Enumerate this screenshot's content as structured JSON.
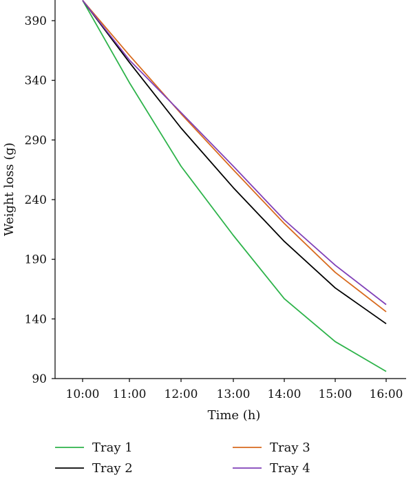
{
  "chart_data": {
    "type": "line",
    "title": "",
    "xlabel": "Time (h)",
    "ylabel": "Weight loss (g)",
    "categories": [
      "10:00",
      "11:00",
      "12:00",
      "13:00",
      "14:00",
      "15:00",
      "16:00"
    ],
    "yticks": [
      90,
      140,
      190,
      240,
      290,
      340,
      390
    ],
    "ylim": [
      90,
      405
    ],
    "grid": false,
    "legend_position": "bottom",
    "series": [
      {
        "name": "Tray 1",
        "color": "#2db34a",
        "values": [
          407,
          338,
          268,
          210,
          157,
          121,
          96
        ]
      },
      {
        "name": "Tray 2",
        "color": "#000000",
        "values": [
          407,
          355,
          300,
          250,
          205,
          166,
          136
        ]
      },
      {
        "name": "Tray 3",
        "color": "#d86a1e",
        "values": [
          407,
          361,
          312,
          265,
          220,
          179,
          146
        ]
      },
      {
        "name": "Tray 4",
        "color": "#8040b8",
        "values": [
          407,
          357,
          313,
          268,
          223,
          185,
          152
        ]
      }
    ]
  }
}
